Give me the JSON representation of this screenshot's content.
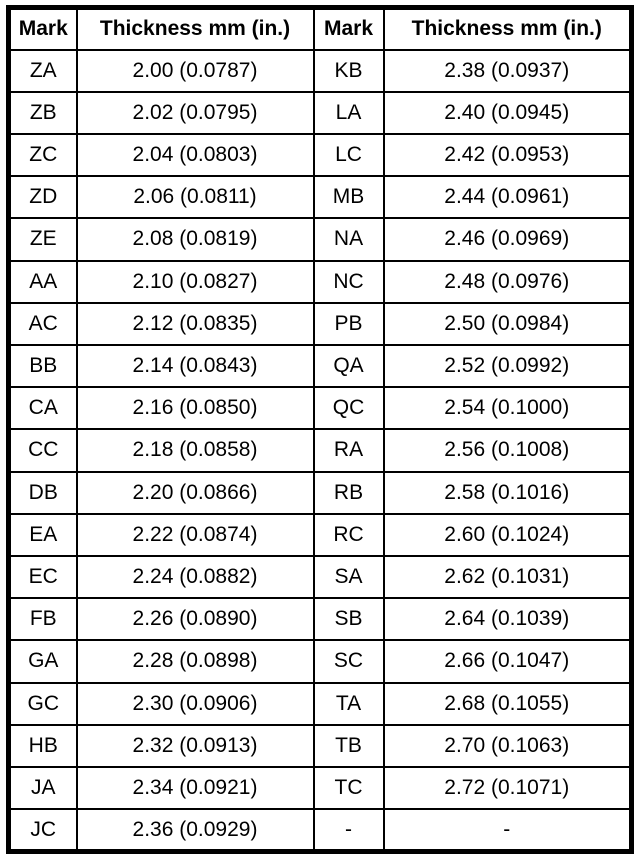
{
  "table": {
    "name": "shim-thickness-table",
    "headers": [
      "Mark",
      "Thickness mm (in.)",
      "Mark",
      "Thickness mm (in.)"
    ],
    "rows": [
      [
        "ZA",
        "2.00 (0.0787)",
        "KB",
        "2.38 (0.0937)"
      ],
      [
        "ZB",
        "2.02 (0.0795)",
        "LA",
        "2.40 (0.0945)"
      ],
      [
        "ZC",
        "2.04 (0.0803)",
        "LC",
        "2.42 (0.0953)"
      ],
      [
        "ZD",
        "2.06 (0.0811)",
        "MB",
        "2.44 (0.0961)"
      ],
      [
        "ZE",
        "2.08 (0.0819)",
        "NA",
        "2.46 (0.0969)"
      ],
      [
        "AA",
        "2.10 (0.0827)",
        "NC",
        "2.48 (0.0976)"
      ],
      [
        "AC",
        "2.12 (0.0835)",
        "PB",
        "2.50 (0.0984)"
      ],
      [
        "BB",
        "2.14 (0.0843)",
        "QA",
        "2.52 (0.0992)"
      ],
      [
        "CA",
        "2.16 (0.0850)",
        "QC",
        "2.54 (0.1000)"
      ],
      [
        "CC",
        "2.18 (0.0858)",
        "RA",
        "2.56 (0.1008)"
      ],
      [
        "DB",
        "2.20 (0.0866)",
        "RB",
        "2.58 (0.1016)"
      ],
      [
        "EA",
        "2.22 (0.0874)",
        "RC",
        "2.60 (0.1024)"
      ],
      [
        "EC",
        "2.24 (0.0882)",
        "SA",
        "2.62 (0.1031)"
      ],
      [
        "FB",
        "2.26 (0.0890)",
        "SB",
        "2.64 (0.1039)"
      ],
      [
        "GA",
        "2.28 (0.0898)",
        "SC",
        "2.66 (0.1047)"
      ],
      [
        "GC",
        "2.30 (0.0906)",
        "TA",
        "2.68 (0.1055)"
      ],
      [
        "HB",
        "2.32 (0.0913)",
        "TB",
        "2.70 (0.1063)"
      ],
      [
        "JA",
        "2.34 (0.0921)",
        "TC",
        "2.72 (0.1071)"
      ],
      [
        "JC",
        "2.36 (0.0929)",
        "-",
        "-"
      ]
    ]
  },
  "colors": {
    "border": "#000000",
    "background": "#ffffff",
    "text": "#000000"
  }
}
